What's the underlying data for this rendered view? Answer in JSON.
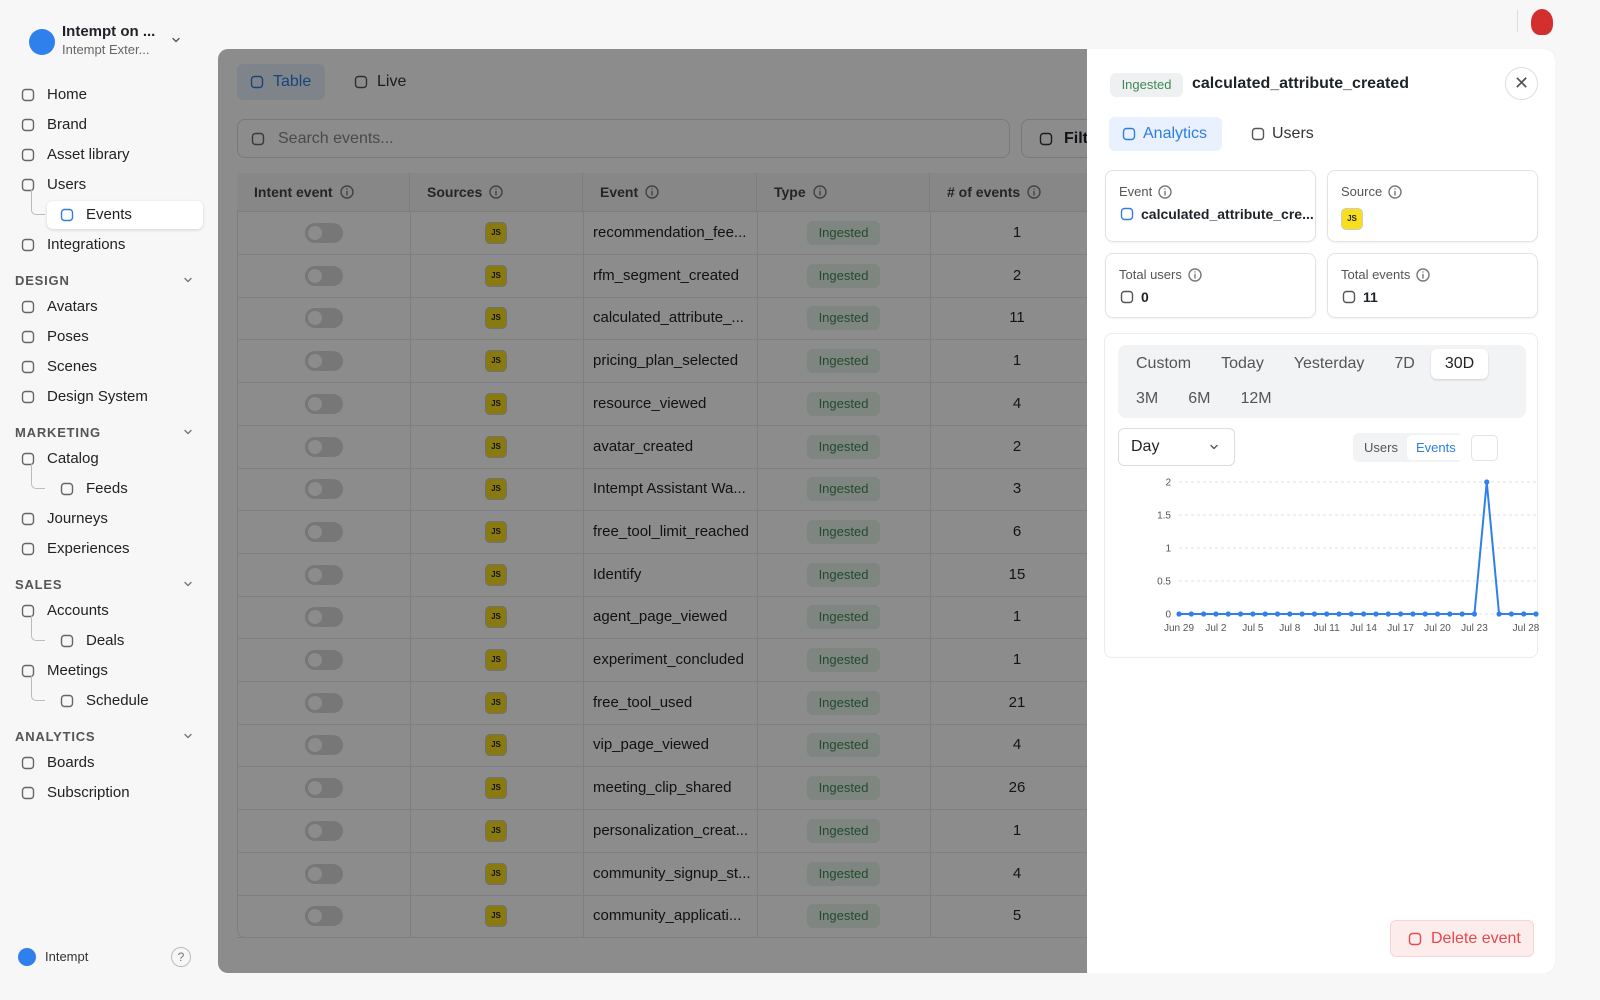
{
  "workspace": {
    "name": "Intempt on ...",
    "subtitle": "Intempt Exter..."
  },
  "nav": {
    "items": [
      {
        "label": "Home"
      },
      {
        "label": "Brand"
      },
      {
        "label": "Asset library"
      },
      {
        "label": "Users",
        "children": [
          {
            "label": "Events",
            "selected": true
          }
        ]
      },
      {
        "label": "Integrations"
      }
    ],
    "sections": [
      {
        "title": "DESIGN",
        "items": [
          {
            "label": "Avatars"
          },
          {
            "label": "Poses"
          },
          {
            "label": "Scenes"
          },
          {
            "label": "Design System"
          }
        ]
      },
      {
        "title": "MARKETING",
        "items": [
          {
            "label": "Catalog",
            "children": [
              {
                "label": "Feeds"
              }
            ]
          },
          {
            "label": "Journeys"
          },
          {
            "label": "Experiences"
          }
        ]
      },
      {
        "title": "SALES",
        "items": [
          {
            "label": "Accounts",
            "children": [
              {
                "label": "Deals"
              }
            ]
          },
          {
            "label": "Meetings",
            "children": [
              {
                "label": "Schedule"
              }
            ]
          }
        ]
      },
      {
        "title": "ANALYTICS",
        "items": [
          {
            "label": "Boards"
          },
          {
            "label": "Subscription"
          }
        ]
      }
    ]
  },
  "footer": {
    "brand": "Intempt",
    "help": "?"
  },
  "view_tabs": [
    {
      "label": "Table",
      "selected": true
    },
    {
      "label": "Live"
    }
  ],
  "search": {
    "placeholder": "Search events...",
    "filter": "Filters"
  },
  "table": {
    "columns": [
      "Intent event",
      "Sources",
      "Event",
      "Type",
      "# of events"
    ],
    "rows": [
      {
        "source": "JS",
        "event": "recommendation_fee...",
        "type": "Ingested",
        "count": 1
      },
      {
        "source": "JS",
        "event": "rfm_segment_created",
        "type": "Ingested",
        "count": 2
      },
      {
        "source": "JS",
        "event": "calculated_attribute_...",
        "type": "Ingested",
        "count": 11
      },
      {
        "source": "JS",
        "event": "pricing_plan_selected",
        "type": "Ingested",
        "count": 1
      },
      {
        "source": "JS",
        "event": "resource_viewed",
        "type": "Ingested",
        "count": 4
      },
      {
        "source": "JS",
        "event": "avatar_created",
        "type": "Ingested",
        "count": 2
      },
      {
        "source": "JS",
        "event": "Intempt Assistant Wa...",
        "type": "Ingested",
        "count": 3
      },
      {
        "source": "JS",
        "event": "free_tool_limit_reached",
        "type": "Ingested",
        "count": 6
      },
      {
        "source": "JS",
        "event": "Identify",
        "type": "Ingested",
        "count": 15
      },
      {
        "source": "JS",
        "event": "agent_page_viewed",
        "type": "Ingested",
        "count": 1
      },
      {
        "source": "JS",
        "event": "experiment_concluded",
        "type": "Ingested",
        "count": 1
      },
      {
        "source": "JS",
        "event": "free_tool_used",
        "type": "Ingested",
        "count": 21
      },
      {
        "source": "JS",
        "event": "vip_page_viewed",
        "type": "Ingested",
        "count": 4
      },
      {
        "source": "JS",
        "event": "meeting_clip_shared",
        "type": "Ingested",
        "count": 26
      },
      {
        "source": "JS",
        "event": "personalization_creat...",
        "type": "Ingested",
        "count": 1
      },
      {
        "source": "JS",
        "event": "community_signup_st...",
        "type": "Ingested",
        "count": 4
      },
      {
        "source": "JS",
        "event": "community_applicati...",
        "type": "Ingested",
        "count": 5
      }
    ]
  },
  "panel": {
    "badge": "Ingested",
    "title": "calculated_attribute_created",
    "tabs": [
      {
        "label": "Analytics",
        "selected": true
      },
      {
        "label": "Users"
      }
    ],
    "cards": [
      {
        "label": "Event",
        "value": "calculated_attribute_cre..."
      },
      {
        "label": "Source",
        "value": "JS"
      },
      {
        "label": "Total users",
        "value": 0
      },
      {
        "label": "Total events",
        "value": 11
      }
    ],
    "ranges": [
      {
        "label": "Custom"
      },
      {
        "label": "Today"
      },
      {
        "label": "Yesterday"
      },
      {
        "label": "7D"
      },
      {
        "label": "30D",
        "selected": true
      },
      {
        "label": "3M"
      },
      {
        "label": "6M"
      },
      {
        "label": "12M"
      }
    ],
    "interval": "Day",
    "metric_toggle": [
      {
        "label": "Users"
      },
      {
        "label": "Events",
        "selected": true
      }
    ],
    "delete": "Delete event"
  },
  "chart_data": {
    "type": "line",
    "categories": [
      "Jun 29",
      null,
      null,
      "Jul 2",
      null,
      null,
      "Jul 5",
      null,
      null,
      "Jul 8",
      null,
      null,
      "Jul 11",
      null,
      null,
      "Jul 14",
      null,
      null,
      "Jul 17",
      null,
      null,
      "Jul 20",
      null,
      null,
      "Jul 23",
      null,
      null,
      null,
      null,
      "Jul 28"
    ],
    "values": [
      0,
      0,
      0,
      0,
      0,
      0,
      0,
      0,
      0,
      0,
      0,
      0,
      0,
      0,
      0,
      0,
      0,
      0,
      0,
      0,
      0,
      0,
      0,
      0,
      0,
      2,
      0,
      0,
      0,
      0
    ],
    "color": "#2f80ed",
    "ylim": [
      0,
      2
    ],
    "yticks": [
      0,
      0.5,
      1,
      1.5,
      2
    ],
    "grid": true
  }
}
